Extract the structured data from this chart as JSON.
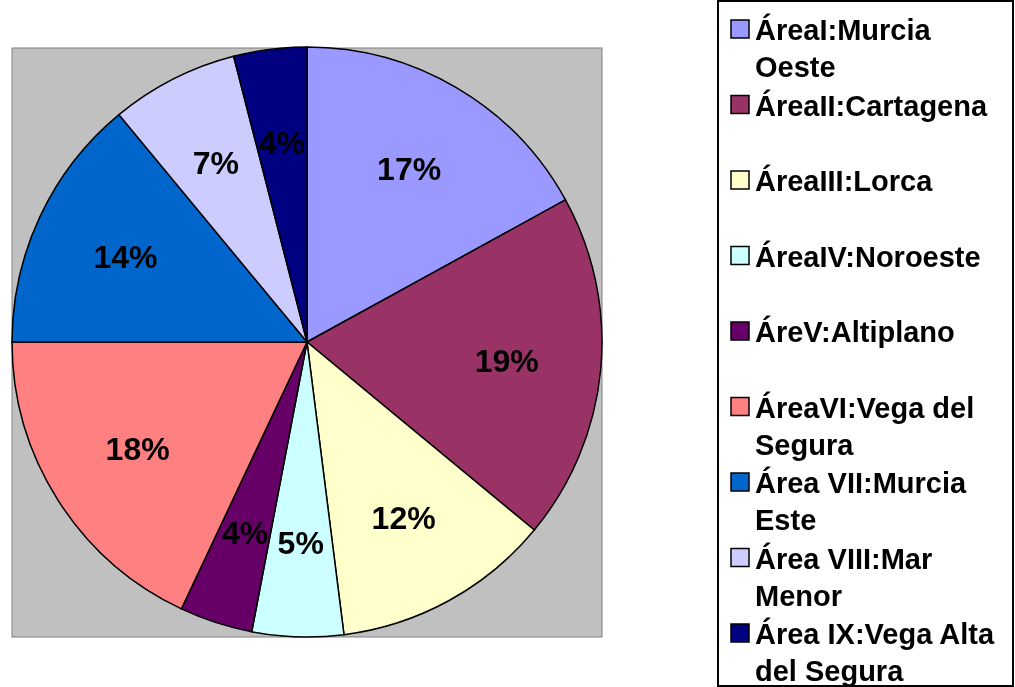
{
  "chart_data": {
    "type": "pie",
    "categories": [
      "ÁreaI:Murcia Oeste",
      "ÁreaII:Cartagena",
      "ÁreaIII:Lorca",
      "ÁreaIV:Noroeste",
      "ÁreV:Altiplano",
      "ÁreaVI:Vega del Segura",
      "Área VII:Murcia Este",
      "Área VIII:Mar Menor",
      "Área IX:Vega Alta del Segura"
    ],
    "values": [
      17,
      19,
      12,
      5,
      4,
      18,
      14,
      7,
      4
    ],
    "colors": [
      "#9999ff",
      "#993366",
      "#ffffcc",
      "#ccffff",
      "#660066",
      "#ff8080",
      "#0066cc",
      "#ccccff",
      "#000080"
    ],
    "value_labels": [
      "17%",
      "19%",
      "12%",
      "5%",
      "4%",
      "18%",
      "14%",
      "7%",
      "4%"
    ],
    "legend": "right"
  }
}
